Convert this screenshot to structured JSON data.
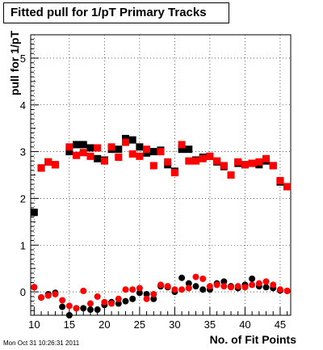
{
  "chart_data": {
    "type": "scatter",
    "title": "Fitted pull for 1/pT Primary Tracks",
    "xlabel": "No. of Fit Points",
    "ylabel": "pull for 1/pT",
    "xlim": [
      9.5,
      46.5
    ],
    "ylim": [
      -0.5,
      5.5
    ],
    "xticks": [
      "10",
      "15",
      "20",
      "25",
      "30",
      "35",
      "40",
      "45"
    ],
    "yticks": [
      "0",
      "1",
      "2",
      "3",
      "4",
      "5"
    ],
    "grid": true,
    "legend": "none",
    "series": [
      {
        "color": "#000000",
        "kind": "pull",
        "marker": "square",
        "points": [
          [
            10,
            1.7
          ],
          [
            11,
            2.65
          ],
          [
            12,
            2.78
          ],
          [
            13,
            2.72
          ],
          [
            15,
            3.0
          ],
          [
            16,
            3.15
          ],
          [
            17,
            3.15
          ],
          [
            18,
            3.08
          ],
          [
            19,
            2.85
          ],
          [
            20,
            2.82
          ],
          [
            21,
            3.05
          ],
          [
            22,
            3.05
          ],
          [
            23,
            3.28
          ],
          [
            24,
            3.25
          ],
          [
            25,
            3.1
          ],
          [
            26,
            2.97
          ],
          [
            27,
            3.0
          ],
          [
            28,
            3.03
          ],
          [
            29,
            2.72
          ],
          [
            30,
            2.58
          ],
          [
            31,
            3.05
          ],
          [
            32,
            3.05
          ],
          [
            33,
            2.82
          ],
          [
            34,
            2.88
          ],
          [
            35,
            2.9
          ],
          [
            36,
            2.78
          ],
          [
            37,
            2.68
          ],
          [
            38,
            2.5
          ],
          [
            39,
            2.75
          ],
          [
            40,
            2.72
          ],
          [
            41,
            2.75
          ],
          [
            42,
            2.72
          ],
          [
            43,
            2.8
          ],
          [
            44,
            2.7
          ],
          [
            45,
            2.35
          ],
          [
            46,
            2.25
          ]
        ]
      },
      {
        "color": "#ff0000",
        "kind": "pull",
        "marker": "square",
        "points": [
          [
            11,
            2.65
          ],
          [
            12,
            2.78
          ],
          [
            13,
            2.72
          ],
          [
            15,
            3.1
          ],
          [
            16,
            2.92
          ],
          [
            17,
            2.98
          ],
          [
            18,
            2.9
          ],
          [
            19,
            3.08
          ],
          [
            20,
            2.8
          ],
          [
            21,
            3.1
          ],
          [
            22,
            2.88
          ],
          [
            23,
            3.2
          ],
          [
            24,
            2.95
          ],
          [
            25,
            2.9
          ],
          [
            26,
            3.05
          ],
          [
            27,
            2.7
          ],
          [
            28,
            3.0
          ],
          [
            29,
            2.78
          ],
          [
            30,
            2.55
          ],
          [
            31,
            3.15
          ],
          [
            32,
            2.8
          ],
          [
            33,
            2.8
          ],
          [
            34,
            2.85
          ],
          [
            35,
            2.9
          ],
          [
            36,
            2.8
          ],
          [
            37,
            2.7
          ],
          [
            38,
            2.5
          ],
          [
            39,
            2.78
          ],
          [
            40,
            2.72
          ],
          [
            41,
            2.75
          ],
          [
            42,
            2.78
          ],
          [
            43,
            2.85
          ],
          [
            44,
            2.7
          ],
          [
            45,
            2.38
          ],
          [
            46,
            2.25
          ]
        ]
      },
      {
        "color": "#000000",
        "kind": "mean",
        "marker": "circle",
        "points": [
          [
            10,
            0.1
          ],
          [
            11,
            -0.12
          ],
          [
            12,
            -0.05
          ],
          [
            13,
            -0.02
          ],
          [
            14,
            -0.32
          ],
          [
            15,
            -0.5
          ],
          [
            16,
            -0.35
          ],
          [
            17,
            -0.35
          ],
          [
            18,
            -0.38
          ],
          [
            19,
            -0.38
          ],
          [
            20,
            -0.28
          ],
          [
            21,
            -0.22
          ],
          [
            22,
            -0.25
          ],
          [
            23,
            -0.2
          ],
          [
            24,
            -0.15
          ],
          [
            25,
            -0.02
          ],
          [
            26,
            -0.05
          ],
          [
            27,
            -0.15
          ],
          [
            28,
            0.12
          ],
          [
            29,
            0.1
          ],
          [
            30,
            0.0
          ],
          [
            31,
            0.3
          ],
          [
            32,
            0.18
          ],
          [
            33,
            0.12
          ],
          [
            34,
            0.05
          ],
          [
            35,
            0.05
          ],
          [
            36,
            0.18
          ],
          [
            37,
            0.22
          ],
          [
            38,
            0.12
          ],
          [
            39,
            0.08
          ],
          [
            40,
            0.15
          ],
          [
            41,
            0.28
          ],
          [
            42,
            0.12
          ],
          [
            43,
            0.1
          ],
          [
            44,
            0.08
          ],
          [
            45,
            0.03
          ],
          [
            46,
            0.02
          ]
        ]
      },
      {
        "color": "#ff0000",
        "kind": "mean",
        "marker": "circle",
        "points": [
          [
            10,
            0.1
          ],
          [
            11,
            -0.12
          ],
          [
            12,
            -0.08
          ],
          [
            13,
            -0.05
          ],
          [
            14,
            -0.18
          ],
          [
            15,
            -0.3
          ],
          [
            16,
            -0.35
          ],
          [
            17,
            0.02
          ],
          [
            18,
            -0.25
          ],
          [
            19,
            -0.1
          ],
          [
            20,
            -0.22
          ],
          [
            21,
            -0.25
          ],
          [
            22,
            -0.15
          ],
          [
            23,
            0.05
          ],
          [
            24,
            0.05
          ],
          [
            25,
            0.08
          ],
          [
            26,
            -0.15
          ],
          [
            27,
            -0.05
          ],
          [
            28,
            0.15
          ],
          [
            29,
            0.12
          ],
          [
            30,
            0.05
          ],
          [
            31,
            0.05
          ],
          [
            32,
            0.08
          ],
          [
            33,
            0.32
          ],
          [
            34,
            0.28
          ],
          [
            35,
            0.12
          ],
          [
            36,
            0.15
          ],
          [
            37,
            0.12
          ],
          [
            38,
            0.1
          ],
          [
            39,
            0.12
          ],
          [
            40,
            0.1
          ],
          [
            41,
            0.15
          ],
          [
            42,
            0.18
          ],
          [
            43,
            0.22
          ],
          [
            44,
            0.15
          ],
          [
            45,
            0.05
          ],
          [
            46,
            0.02
          ]
        ]
      }
    ]
  },
  "footer": {
    "timestamp": "Mon Oct 31 10:26:31 2011"
  }
}
